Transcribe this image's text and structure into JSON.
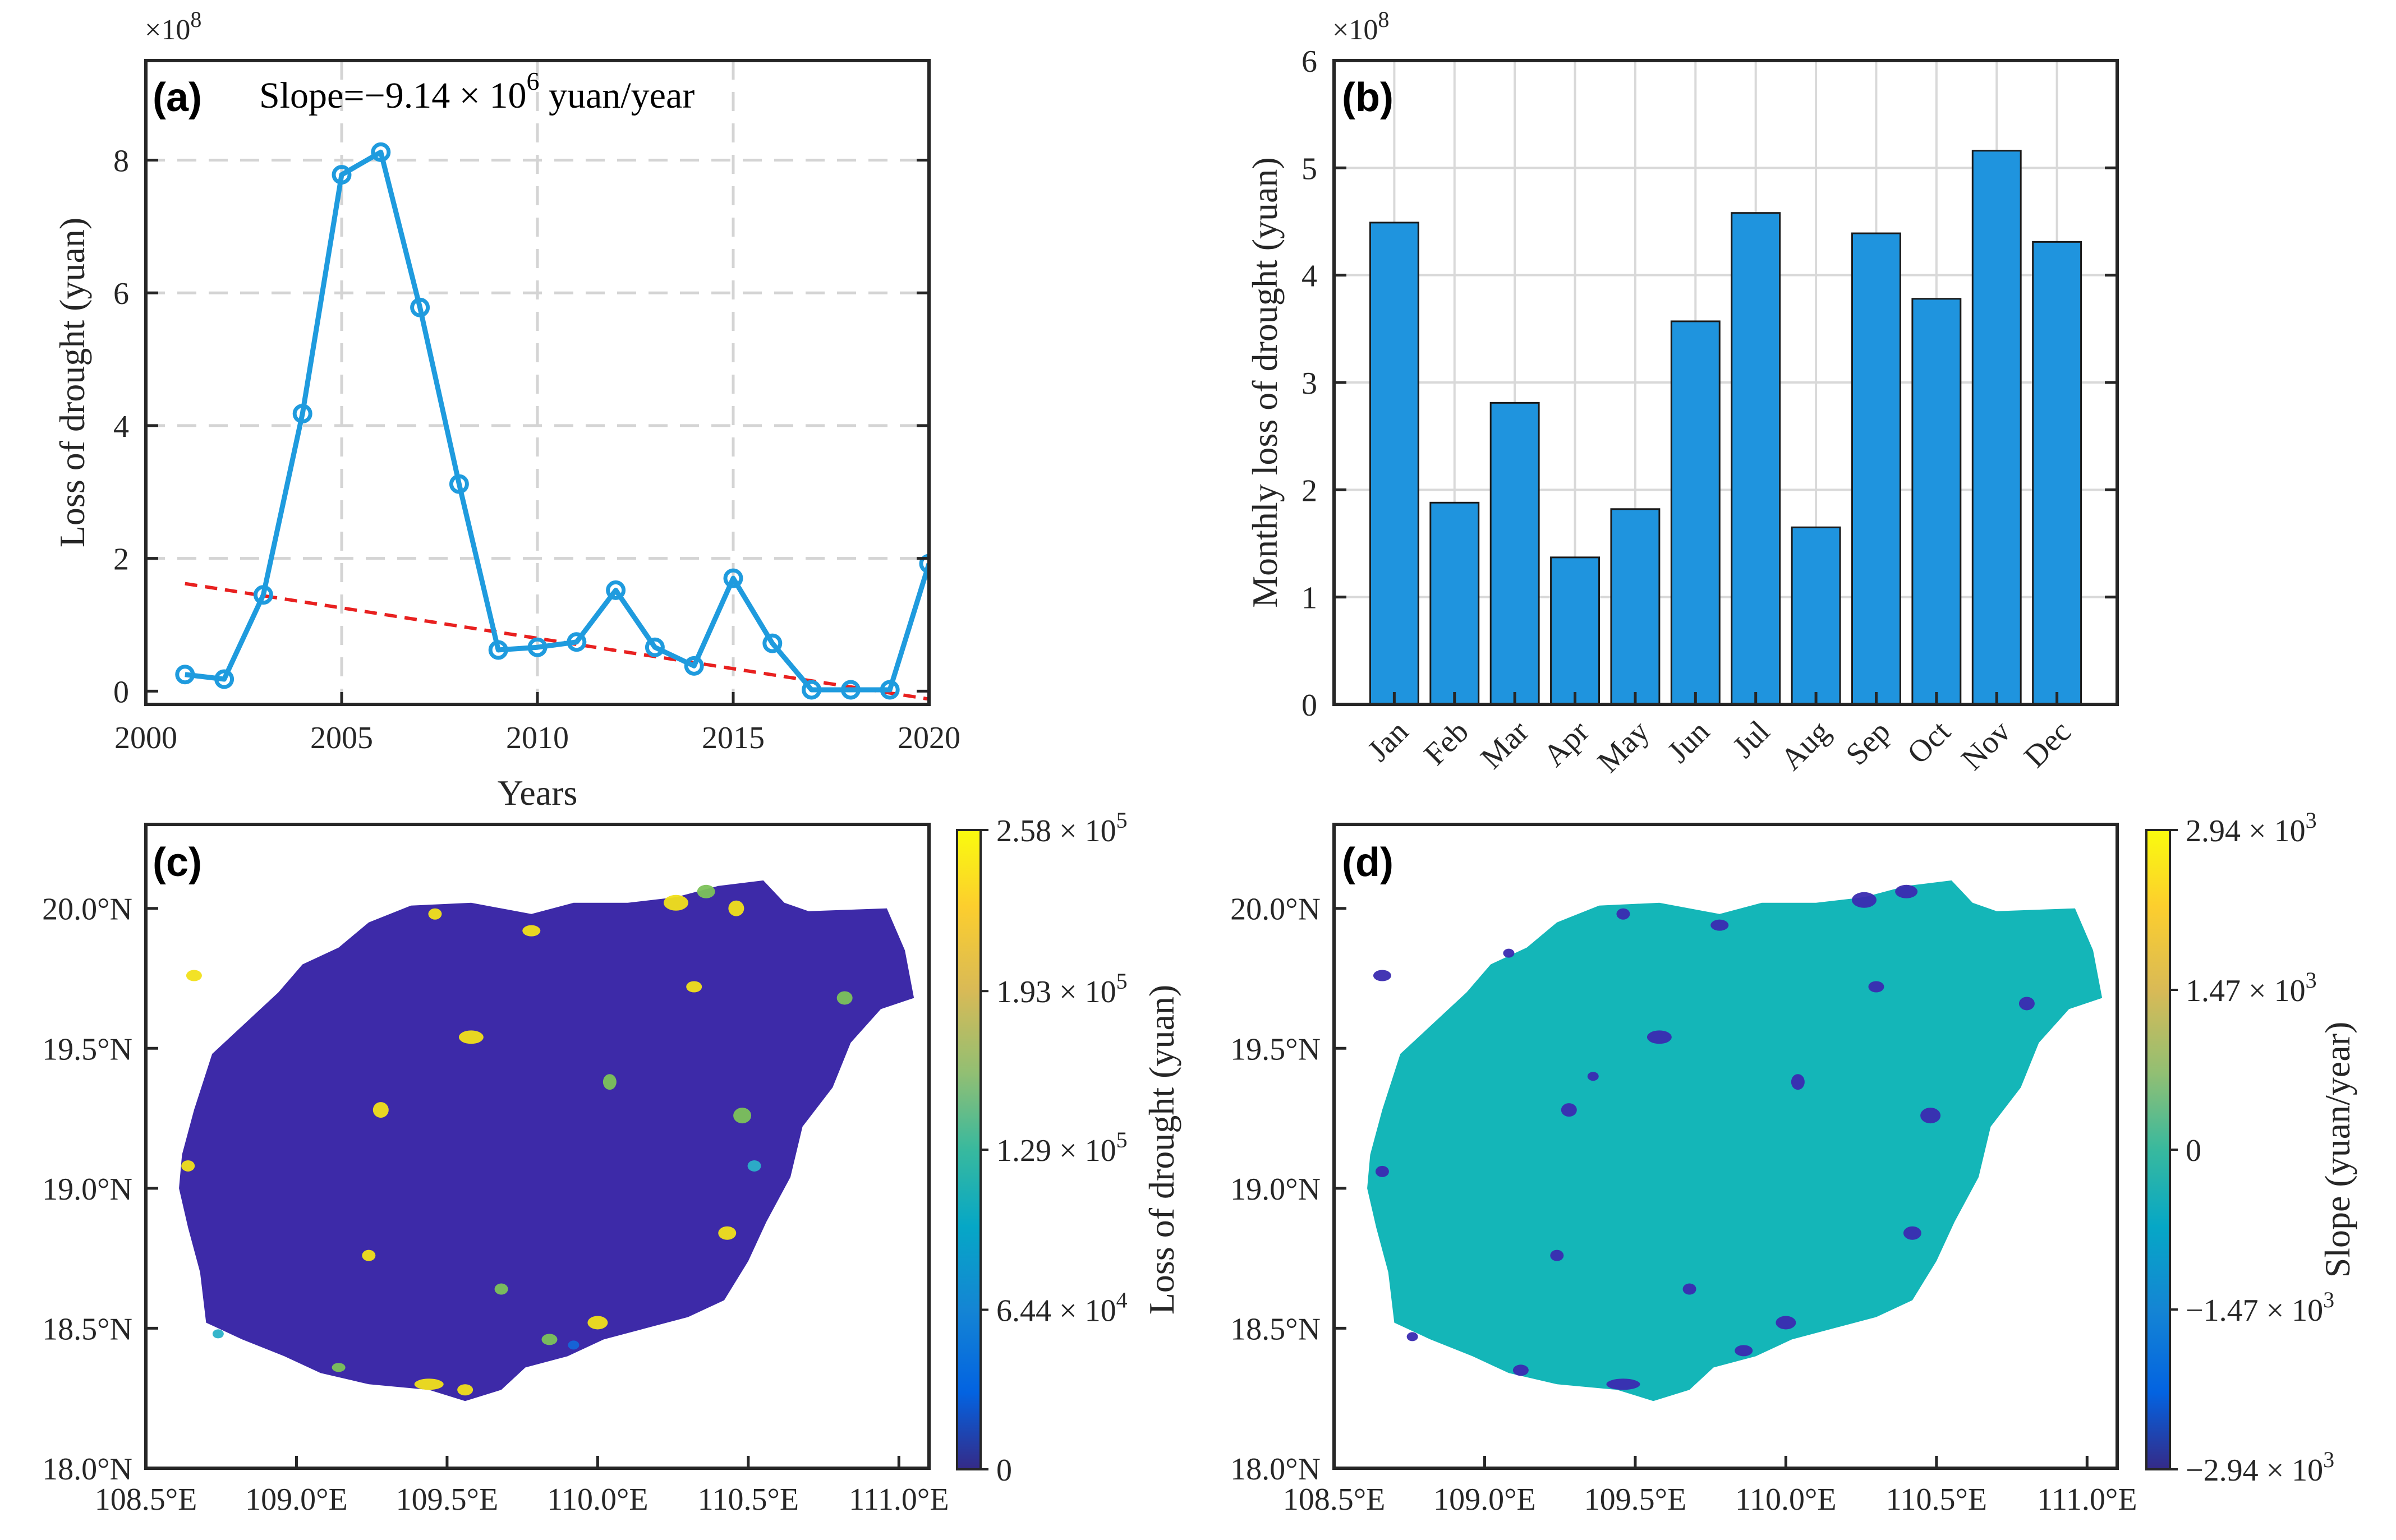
{
  "figure": {
    "panel_tags": [
      "(a)",
      "(b)",
      "(c)",
      "(d)"
    ]
  },
  "chart_data": [
    {
      "type": "line",
      "panel": "(a)",
      "xlabel": "Years",
      "ylabel": "Loss of drought  (yuan)",
      "y_exponent": "×10",
      "y_exponent_power": "8",
      "xlim": [
        2000,
        2020
      ],
      "ylim": [
        -0.2,
        9.5
      ],
      "xticks": [
        2000,
        2005,
        2010,
        2015,
        2020
      ],
      "yticks": [
        0,
        2,
        4,
        6,
        8
      ],
      "grid": "dashed",
      "annotation": {
        "prefix": "Slope=−9.14 × 10",
        "power": "6",
        "suffix": " yuan/year"
      },
      "series": [
        {
          "x": [
            2001,
            2002,
            2003,
            2004,
            2005,
            2006,
            2007,
            2008,
            2009,
            2010,
            2011,
            2012,
            2013,
            2014,
            2015,
            2016,
            2017,
            2018,
            2019,
            2020
          ],
          "values": [
            0.25,
            0.18,
            1.45,
            4.18,
            7.78,
            8.12,
            5.78,
            3.12,
            0.62,
            0.66,
            0.74,
            1.52,
            0.66,
            0.38,
            1.7,
            0.72,
            0.02,
            0.02,
            0.02,
            1.92
          ],
          "color": "#1f9bde",
          "marker": "circle"
        }
      ],
      "trend": {
        "x": [
          2001,
          2020
        ],
        "values": [
          1.62,
          -0.12
        ],
        "color": "#e8201f",
        "style": "dashed"
      }
    },
    {
      "type": "bar",
      "panel": "(b)",
      "ylabel": "Monthly loss of drought  (yuan)",
      "y_exponent": "×10",
      "y_exponent_power": "8",
      "ylim": [
        0,
        6
      ],
      "yticks": [
        0,
        1,
        2,
        3,
        4,
        5,
        6
      ],
      "grid": "solid",
      "categories": [
        "Jan",
        "Feb",
        "Mar",
        "Apr",
        "May",
        "Jun",
        "Jul",
        "Aug",
        "Sep",
        "Oct",
        "Nov",
        "Dec"
      ],
      "values": [
        4.49,
        1.88,
        2.81,
        1.37,
        1.82,
        3.57,
        4.58,
        1.65,
        4.39,
        3.78,
        5.16,
        4.31
      ],
      "color": "#1f94de"
    },
    {
      "type": "heatmap",
      "panel": "(c)",
      "colorbar_label": "Loss of drought  (yuan)",
      "colorbar_ticks": [
        {
          "value": 0,
          "mantissa": "0",
          "power": ""
        },
        {
          "value": 64400,
          "mantissa": "6.44 × 10",
          "power": "4"
        },
        {
          "value": 129000,
          "mantissa": "1.29 × 10",
          "power": "5"
        },
        {
          "value": 193000,
          "mantissa": "1.93 × 10",
          "power": "5"
        },
        {
          "value": 258000,
          "mantissa": "2.58 × 10",
          "power": "5"
        }
      ],
      "xlim": [
        108.5,
        111.1
      ],
      "ylim": [
        18.0,
        20.3
      ],
      "xticks": [
        "108.5°E",
        "109.0°E",
        "109.5°E",
        "110.0°E",
        "110.5°E",
        "111.0°E"
      ],
      "yticks": [
        "18.0°N",
        "18.5°N",
        "19.0°N",
        "19.5°N",
        "20.0°N"
      ],
      "colormap": "parula",
      "base_color": "#3d2aa8"
    },
    {
      "type": "heatmap",
      "panel": "(d)",
      "colorbar_label": "Slope (yuan/year)",
      "colorbar_ticks": [
        {
          "value": -2940,
          "mantissa": "−2.94 × 10",
          "power": "3"
        },
        {
          "value": -1470,
          "mantissa": "−1.47 × 10",
          "power": "3"
        },
        {
          "value": 0,
          "mantissa": "0",
          "power": ""
        },
        {
          "value": 1470,
          "mantissa": "1.47 × 10",
          "power": "3"
        },
        {
          "value": 2940,
          "mantissa": "2.94 × 10",
          "power": "3"
        }
      ],
      "xlim": [
        108.5,
        111.1
      ],
      "ylim": [
        18.0,
        20.3
      ],
      "xticks": [
        "108.5°E",
        "109.0°E",
        "109.5°E",
        "110.0°E",
        "110.5°E",
        "111.0°E"
      ],
      "yticks": [
        "18.0°N",
        "18.5°N",
        "19.0°N",
        "19.5°N",
        "20.0°N"
      ],
      "colormap": "parula",
      "base_color": "#14b6b8"
    }
  ]
}
